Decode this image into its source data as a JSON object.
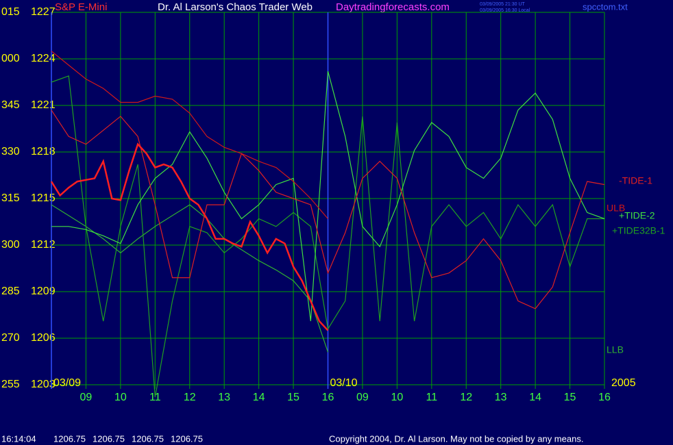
{
  "chart_data": {
    "type": "line",
    "title": "Dr. Al Larson's Chaos Trader Web",
    "subtitle": "Daytradingforecasts.com",
    "timestamps": [
      "03/09/2005 21:30 UT",
      "03/09/2005 16:30 Local"
    ],
    "file": "spcctom.txt",
    "day_labels": [
      {
        "value": 0,
        "label": "03/09"
      },
      {
        "value": 8,
        "label": "03/10"
      },
      {
        "value": 16,
        "label": "2005"
      }
    ],
    "x": [
      0,
      0.5,
      1,
      1.5,
      2,
      2.5,
      3,
      3.5,
      4,
      4.5,
      5,
      5.5,
      6,
      6.5,
      7,
      7.5,
      8,
      8.5,
      9,
      9.5,
      10,
      10.5,
      11,
      11.5,
      12,
      12.5,
      13,
      13.5,
      14,
      14.5,
      15,
      15.5,
      16
    ],
    "xlim": [
      0,
      16
    ],
    "xticks": [
      {
        "value": 1,
        "label": "09"
      },
      {
        "value": 2,
        "label": "10"
      },
      {
        "value": 3,
        "label": "11"
      },
      {
        "value": 4,
        "label": "12"
      },
      {
        "value": 5,
        "label": "13"
      },
      {
        "value": 6,
        "label": "14"
      },
      {
        "value": 7,
        "label": "15"
      },
      {
        "value": 8,
        "label": "16"
      },
      {
        "value": 9,
        "label": "09"
      },
      {
        "value": 10,
        "label": "10"
      },
      {
        "value": 11,
        "label": "11"
      },
      {
        "value": 12,
        "label": "12"
      },
      {
        "value": 13,
        "label": "13"
      },
      {
        "value": 14,
        "label": "14"
      },
      {
        "value": 15,
        "label": "15"
      },
      {
        "value": 16,
        "label": "16"
      }
    ],
    "ylim": [
      1203,
      1227
    ],
    "yticks": [
      1227,
      1224,
      1221,
      1218,
      1215,
      1212,
      1209,
      1206,
      1203
    ],
    "ytick_angles": [
      "015",
      "000",
      "345",
      "330",
      "315",
      "300",
      "285",
      "270",
      "255"
    ],
    "grid": true,
    "grid_color": "#00a000",
    "series": [
      {
        "name": "S&P E-Mini",
        "color": "#ff2020",
        "x": [
          0,
          0.25,
          0.5,
          0.75,
          1,
          1.25,
          1.5,
          1.75,
          2,
          2.25,
          2.5,
          2.75,
          3,
          3.25,
          3.5,
          3.75,
          4,
          4.25,
          4.5,
          4.75,
          5,
          5.25,
          5.5,
          5.75,
          6,
          6.25,
          6.5,
          6.75,
          7,
          7.25,
          7.5,
          7.75,
          8
        ],
        "values": [
          1216.1,
          1215.2,
          1215.7,
          1216.1,
          1216.2,
          1216.3,
          1217.4,
          1215.0,
          1214.9,
          1216.8,
          1218.5,
          1217.9,
          1217.0,
          1217.2,
          1217.0,
          1216.1,
          1215.0,
          1214.6,
          1213.7,
          1212.4,
          1212.4,
          1212.1,
          1211.9,
          1213.5,
          1212.6,
          1211.5,
          1212.4,
          1212.1,
          1210.6,
          1209.7,
          1208.4,
          1207.1,
          1206.5
        ]
      },
      {
        "name": "-TIDE-1",
        "color": "#e02020",
        "values": [
          1220.7,
          1219.0,
          1218.5,
          1219.4,
          1220.3,
          1219.0,
          1214.6,
          1209.9,
          1209.9,
          1214.6,
          1214.6,
          1217.9,
          1216.8,
          1215.4,
          1215.0,
          1214.6,
          1210.2,
          1212.8,
          1216.3,
          1217.4,
          1216.3,
          1212.8,
          1209.9,
          1210.2,
          1211.0,
          1212.4,
          1211.0,
          1208.4,
          1207.9,
          1209.3,
          1212.8,
          1216.1,
          1215.9
        ]
      },
      {
        "name": "ULB",
        "color": "#d01818",
        "values": [
          1224.5,
          1223.6,
          1222.7,
          1222.1,
          1221.2,
          1221.2,
          1221.6,
          1221.4,
          1220.5,
          1219.0,
          1218.3,
          1217.9,
          1217.4,
          1217.0,
          1216.1,
          1215.0,
          1213.7,
          null,
          null,
          null,
          null,
          null,
          null,
          null,
          null,
          null,
          null,
          null,
          null,
          null,
          null,
          null,
          null
        ]
      },
      {
        "name": "+TIDE-2",
        "color": "#40e040",
        "values": [
          1213.2,
          1213.2,
          1213.0,
          1212.6,
          1212.1,
          1214.6,
          1216.3,
          1217.2,
          1219.3,
          1217.6,
          1215.4,
          1213.7,
          1214.6,
          1215.9,
          1216.3,
          1207.1,
          1223.2,
          1219.0,
          1213.2,
          1211.9,
          1214.6,
          1218.1,
          1219.9,
          1219.0,
          1217.0,
          1216.3,
          1217.6,
          1220.7,
          1221.8,
          1220.1,
          1216.3,
          1214.1,
          1213.7
        ]
      },
      {
        "name": "+TIDE32B-1",
        "color": "#20a020",
        "values": [
          1222.5,
          1222.9,
          1213.2,
          1207.1,
          1213.2,
          1217.2,
          1202.2,
          1208.4,
          1213.2,
          1212.8,
          1211.5,
          1212.4,
          1213.7,
          1213.2,
          1214.1,
          1213.2,
          1206.6,
          1208.4,
          1220.3,
          1207.1,
          1219.9,
          1207.1,
          1213.2,
          1214.6,
          1213.2,
          1214.1,
          1212.4,
          1214.6,
          1213.2,
          1214.6,
          1210.6,
          1213.7,
          1213.7
        ]
      },
      {
        "name": "LLB",
        "color": "#30b030",
        "values": [
          1214.6,
          1213.9,
          1213.2,
          1212.4,
          1211.5,
          1212.4,
          1213.2,
          1213.9,
          1214.6,
          1213.7,
          1212.4,
          1211.7,
          1211.0,
          1210.4,
          1209.7,
          1208.4,
          1205.1,
          null,
          null,
          null,
          null,
          null,
          null,
          null,
          null,
          null,
          null,
          null,
          null,
          null,
          null,
          null,
          null
        ]
      }
    ],
    "status": {
      "time": "16:14:04",
      "quotes": [
        1206.75,
        1206.75,
        1206.75,
        1206.75
      ]
    },
    "copyright": "Copyright 2004, Dr. Al Larson. May not be copied by any means."
  }
}
